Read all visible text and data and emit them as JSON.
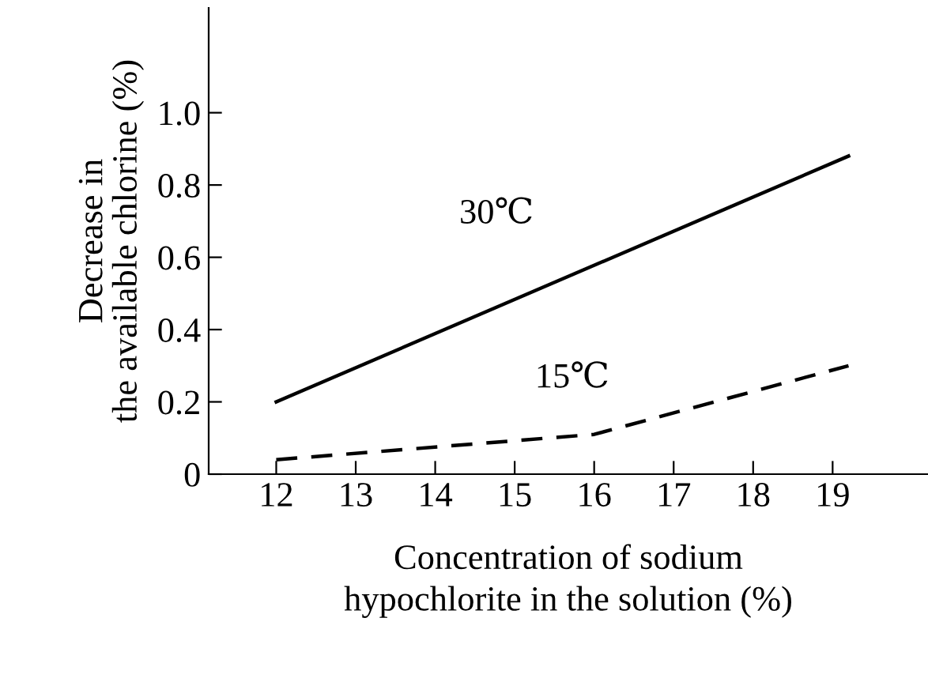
{
  "chart_data": {
    "type": "line",
    "xlabel": "Concentration of sodium\nhypochlorite in the solution (%)",
    "ylabel": "Decrease in\nthe available chlorine (%)",
    "xlim": [
      11.15,
      20.2
    ],
    "ylim": [
      0,
      1.29
    ],
    "xticks": [
      12,
      13,
      14,
      15,
      16,
      17,
      18,
      19
    ],
    "yticks": [
      0,
      0.2,
      0.4,
      0.6,
      0.8,
      {
        "value": 1.0,
        "label": "1.0"
      }
    ],
    "grid": false,
    "legend": false,
    "marker": "none",
    "series": [
      {
        "name": "30℃",
        "color": "#000000",
        "line_style": "solid",
        "x": [
          12,
          19.2
        ],
        "values": [
          0.2,
          0.88
        ]
      },
      {
        "name": "15℃",
        "color": "#000000",
        "line_style": "dashed",
        "x": [
          12,
          16,
          19.2
        ],
        "values": [
          0.04,
          0.11,
          0.3
        ]
      }
    ]
  }
}
